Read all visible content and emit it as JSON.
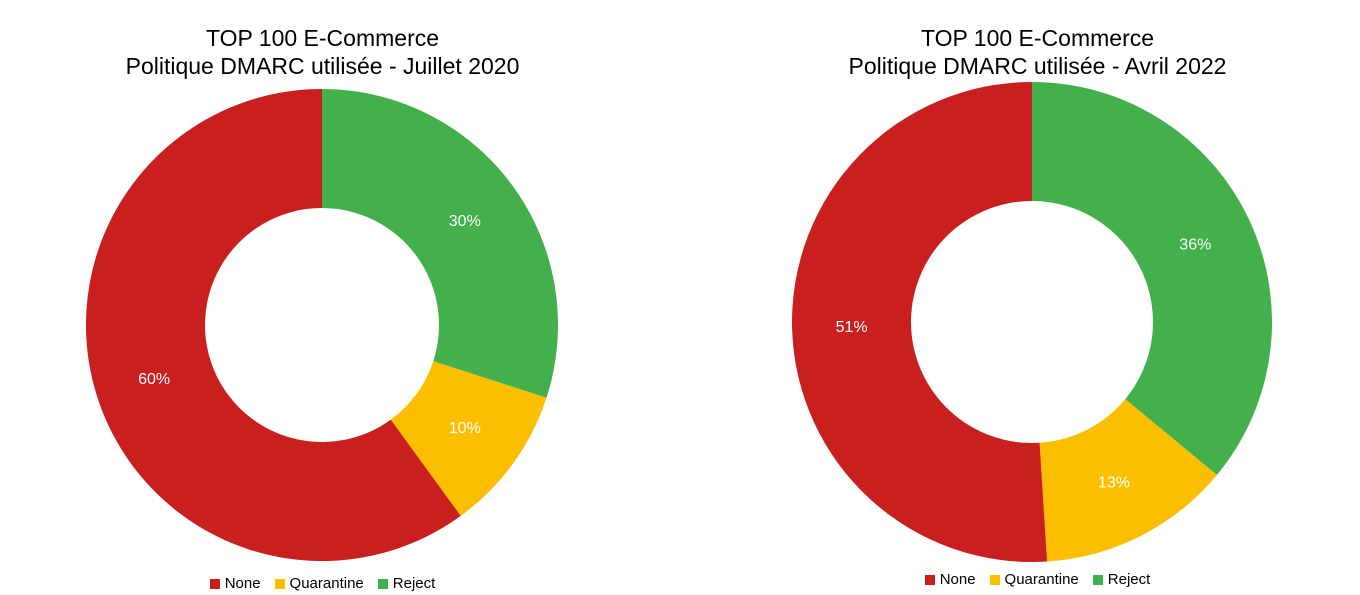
{
  "chart_data": [
    {
      "type": "pie",
      "title_lines": [
        "TOP 100 E-Commerce",
        "Politique DMARC utilisée - Juillet 2020"
      ],
      "categories": [
        "Reject",
        "Quarantine",
        "None"
      ],
      "values": [
        30,
        10,
        60
      ],
      "labels": [
        "30%",
        "10%",
        "60%"
      ],
      "colors": [
        "#43b04b",
        "#fcbf00",
        "#c9201f"
      ],
      "legend": [
        {
          "label": "None",
          "color": "#c9201f"
        },
        {
          "label": "Quarantine",
          "color": "#fcbf00"
        },
        {
          "label": "Reject",
          "color": "#43b04b"
        }
      ],
      "legend_position": "bottom",
      "donut": true
    },
    {
      "type": "pie",
      "title_lines": [
        "TOP 100 E-Commerce",
        "Politique DMARC utilisée - Avril 2022"
      ],
      "categories": [
        "Reject",
        "Quarantine",
        "None"
      ],
      "values": [
        36,
        13,
        51
      ],
      "labels": [
        "36%",
        "13%",
        "51%"
      ],
      "colors": [
        "#43b04b",
        "#fcbf00",
        "#c9201f"
      ],
      "legend": [
        {
          "label": "None",
          "color": "#c9201f"
        },
        {
          "label": "Quarantine",
          "color": "#fcbf00"
        },
        {
          "label": "Reject",
          "color": "#43b04b"
        }
      ],
      "legend_position": "bottom",
      "donut": true
    }
  ]
}
